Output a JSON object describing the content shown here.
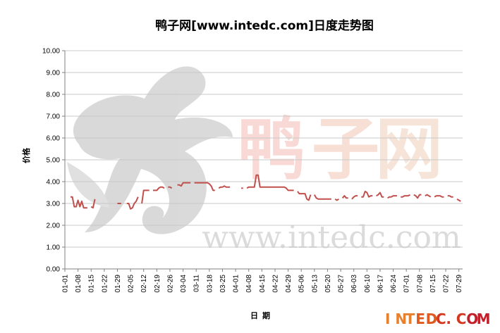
{
  "chart_data": {
    "type": "line",
    "title": "鸭子网[www.intedc.com]日度走势图",
    "ylabel": "价格",
    "xlabel": "日期",
    "ylim": [
      0,
      10
    ],
    "yticks": [
      "0.00",
      "1.00",
      "2.00",
      "3.00",
      "4.00",
      "5.00",
      "6.00",
      "7.00",
      "8.00",
      "9.00",
      "10.00"
    ],
    "grid": true,
    "legend": "none",
    "line_color": "#c0504d",
    "x_start": "01-01",
    "x_end": "07-31",
    "xticks": [
      "01-01",
      "01-08",
      "01-15",
      "01-22",
      "01-29",
      "02-05",
      "02-12",
      "02-19",
      "02-26",
      "03-04",
      "03-11",
      "03-18",
      "03-25",
      "04-01",
      "04-08",
      "04-15",
      "04-22",
      "04-29",
      "05-06",
      "05-13",
      "05-20",
      "05-27",
      "06-03",
      "06-10",
      "06-17",
      "06-24",
      "07-01",
      "07-08",
      "07-15",
      "07-22",
      "07-29"
    ],
    "series": [
      {
        "segments": [
          [
            [
              "01-04",
              3.3
            ],
            [
              "01-05",
              3.3
            ],
            [
              "01-06",
              2.85
            ],
            [
              "01-07",
              2.85
            ],
            [
              "01-08",
              3.15
            ],
            [
              "01-09",
              2.85
            ],
            [
              "01-10",
              3.1
            ],
            [
              "01-11",
              2.8
            ],
            [
              "01-12",
              2.8
            ],
            [
              "01-13",
              2.8
            ]
          ],
          [
            [
              "01-15",
              2.85
            ],
            [
              "01-16",
              2.8
            ],
            [
              "01-17",
              3.2
            ]
          ],
          [
            [
              "01-29",
              3.0
            ],
            [
              "01-30",
              3.0
            ],
            [
              "01-31",
              3.0
            ]
          ],
          [
            [
              "02-03",
              3.0
            ],
            [
              "02-04",
              3.0
            ],
            [
              "02-05",
              2.75
            ],
            [
              "02-06",
              2.8
            ],
            [
              "02-07",
              3.0
            ],
            [
              "02-08",
              3.1
            ],
            [
              "02-09",
              3.3
            ]
          ],
          [
            [
              "02-11",
              3.0
            ],
            [
              "02-12",
              3.6
            ],
            [
              "02-13",
              3.6
            ],
            [
              "02-14",
              3.6
            ],
            [
              "02-15",
              3.6
            ]
          ],
          [
            [
              "02-17",
              3.6
            ],
            [
              "02-18",
              3.6
            ],
            [
              "02-19",
              3.6
            ],
            [
              "02-20",
              3.7
            ],
            [
              "02-21",
              3.75
            ],
            [
              "02-22",
              3.75
            ],
            [
              "02-23",
              3.7
            ]
          ],
          [
            [
              "02-25",
              3.75
            ],
            [
              "02-26",
              3.75
            ],
            [
              "02-27",
              3.7
            ]
          ],
          [
            [
              "03-01",
              3.85
            ],
            [
              "03-02",
              3.85
            ],
            [
              "03-03",
              3.8
            ],
            [
              "03-04",
              3.95
            ],
            [
              "03-05",
              3.95
            ],
            [
              "03-06",
              3.95
            ],
            [
              "03-07",
              3.95
            ],
            [
              "03-08",
              3.95
            ]
          ],
          [
            [
              "03-10",
              3.95
            ],
            [
              "03-11",
              3.95
            ],
            [
              "03-12",
              3.95
            ],
            [
              "03-13",
              3.95
            ],
            [
              "03-14",
              3.95
            ],
            [
              "03-15",
              3.95
            ],
            [
              "03-16",
              3.95
            ],
            [
              "03-17",
              3.95
            ],
            [
              "03-18",
              3.9
            ],
            [
              "03-19",
              3.8
            ],
            [
              "03-20",
              3.6
            ],
            [
              "03-21",
              3.6
            ]
          ],
          [
            [
              "03-23",
              3.7
            ],
            [
              "03-24",
              3.75
            ],
            [
              "03-25",
              3.75
            ],
            [
              "03-26",
              3.8
            ],
            [
              "03-27",
              3.75
            ],
            [
              "03-28",
              3.75
            ],
            [
              "03-29",
              3.75
            ]
          ],
          [
            [
              "04-04",
              3.7
            ],
            [
              "04-05",
              3.7
            ]
          ],
          [
            [
              "04-07",
              3.7
            ],
            [
              "04-08",
              3.75
            ],
            [
              "04-09",
              3.75
            ],
            [
              "04-10",
              3.75
            ],
            [
              "04-11",
              3.75
            ],
            [
              "04-12",
              4.3
            ],
            [
              "04-13",
              4.3
            ],
            [
              "04-14",
              3.75
            ],
            [
              "04-15",
              3.75
            ],
            [
              "04-16",
              3.75
            ],
            [
              "04-17",
              3.75
            ],
            [
              "04-18",
              3.75
            ],
            [
              "04-19",
              3.75
            ],
            [
              "04-20",
              3.75
            ],
            [
              "04-21",
              3.75
            ],
            [
              "04-22",
              3.75
            ],
            [
              "04-23",
              3.75
            ],
            [
              "04-24",
              3.75
            ],
            [
              "04-25",
              3.75
            ],
            [
              "04-26",
              3.75
            ],
            [
              "04-27",
              3.75
            ],
            [
              "04-28",
              3.7
            ],
            [
              "04-29",
              3.6
            ],
            [
              "04-30",
              3.6
            ],
            [
              "05-01",
              3.6
            ],
            [
              "05-02",
              3.6
            ]
          ],
          [
            [
              "05-04",
              3.55
            ],
            [
              "05-05",
              3.45
            ],
            [
              "05-06",
              3.45
            ],
            [
              "05-07",
              3.45
            ],
            [
              "05-08",
              3.45
            ],
            [
              "05-09",
              3.2
            ],
            [
              "05-10",
              3.15
            ],
            [
              "05-11",
              3.4
            ]
          ],
          [
            [
              "05-13",
              3.4
            ],
            [
              "05-14",
              3.25
            ],
            [
              "05-15",
              3.2
            ],
            [
              "05-16",
              3.2
            ],
            [
              "05-17",
              3.2
            ],
            [
              "05-18",
              3.2
            ],
            [
              "05-19",
              3.2
            ],
            [
              "05-20",
              3.2
            ],
            [
              "05-21",
              3.2
            ],
            [
              "05-22",
              3.2
            ]
          ],
          [
            [
              "05-24",
              3.2
            ],
            [
              "05-25",
              3.15
            ],
            [
              "05-26",
              3.2
            ]
          ],
          [
            [
              "05-28",
              3.25
            ],
            [
              "05-29",
              3.35
            ],
            [
              "05-30",
              3.25
            ],
            [
              "05-31",
              3.25
            ]
          ],
          [
            [
              "06-02",
              3.2
            ],
            [
              "06-03",
              3.3
            ],
            [
              "06-04",
              3.35
            ],
            [
              "06-05",
              3.35
            ]
          ],
          [
            [
              "06-07",
              3.3
            ],
            [
              "06-08",
              3.3
            ],
            [
              "06-09",
              3.55
            ],
            [
              "06-10",
              3.5
            ],
            [
              "06-11",
              3.3
            ],
            [
              "06-12",
              3.35
            ],
            [
              "06-13",
              3.35
            ]
          ],
          [
            [
              "06-15",
              3.35
            ],
            [
              "06-16",
              3.4
            ],
            [
              "06-17",
              3.5
            ],
            [
              "06-18",
              3.3
            ],
            [
              "06-19",
              3.3
            ]
          ],
          [
            [
              "06-21",
              3.25
            ],
            [
              "06-22",
              3.3
            ],
            [
              "06-23",
              3.3
            ],
            [
              "06-24",
              3.35
            ],
            [
              "06-25",
              3.35
            ],
            [
              "06-26",
              3.35
            ]
          ],
          [
            [
              "06-28",
              3.3
            ],
            [
              "06-29",
              3.3
            ],
            [
              "06-30",
              3.35
            ],
            [
              "07-01",
              3.35
            ],
            [
              "07-02",
              3.35
            ],
            [
              "07-03",
              3.4
            ]
          ],
          [
            [
              "07-05",
              3.4
            ],
            [
              "07-06",
              3.35
            ],
            [
              "07-07",
              3.25
            ],
            [
              "07-08",
              3.4
            ],
            [
              "07-09",
              3.4
            ]
          ],
          [
            [
              "07-11",
              3.35
            ],
            [
              "07-12",
              3.4
            ],
            [
              "07-13",
              3.35
            ],
            [
              "07-14",
              3.3
            ]
          ],
          [
            [
              "07-16",
              3.3
            ],
            [
              "07-17",
              3.35
            ],
            [
              "07-18",
              3.35
            ],
            [
              "07-19",
              3.35
            ],
            [
              "07-20",
              3.3
            ],
            [
              "07-21",
              3.3
            ]
          ],
          [
            [
              "07-23",
              3.35
            ],
            [
              "07-24",
              3.35
            ],
            [
              "07-25",
              3.3
            ],
            [
              "07-26",
              3.3
            ]
          ],
          [
            [
              "07-28",
              3.2
            ],
            [
              "07-29",
              3.15
            ],
            [
              "07-30",
              3.1
            ]
          ]
        ]
      }
    ]
  },
  "watermark": {
    "chars": [
      "鸭",
      "子",
      "网"
    ],
    "url": "www.intedc.com"
  },
  "footer_logo": {
    "text": "INTEDC.COM",
    "colors": [
      "#e8812d",
      "#e05a1f",
      "#d4361f",
      "#c21f2b"
    ]
  }
}
